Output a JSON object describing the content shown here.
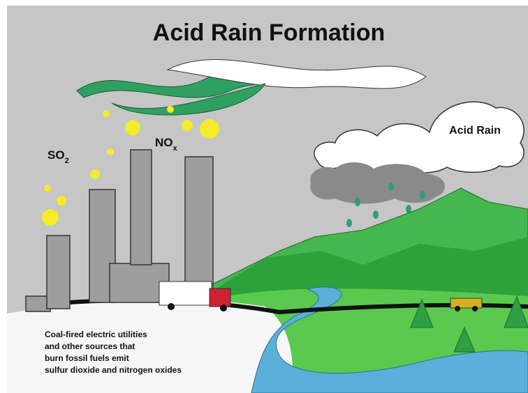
{
  "title": "Acid Rain Formation",
  "labels": {
    "so2": {
      "text": "SO",
      "subscript": "2"
    },
    "nox": {
      "text": "NO",
      "subscript": "x"
    },
    "cloud": "Acid Rain"
  },
  "caption": [
    "Coal-fired electric utilities",
    "and other sources that",
    "burn fossil fuels emit",
    "sulfur dioxide and nitrogen oxides"
  ]
}
